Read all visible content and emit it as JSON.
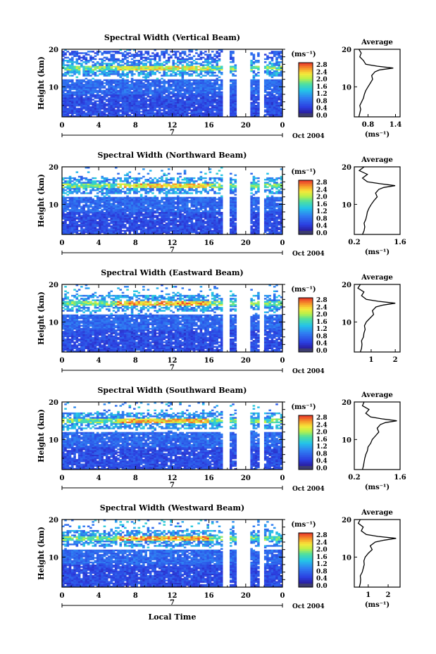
{
  "chart_data": [
    {
      "type": "heatmap",
      "title": "Spectral Width (Vertical Beam)",
      "ylabel": "Height (km)",
      "x_ticks": [
        "0",
        "4",
        "8",
        "12",
        "16",
        "20",
        "0"
      ],
      "y_ticks": [
        "20",
        "10"
      ],
      "date_label": "7",
      "date_suffix": "Oct 2004",
      "xlim": [
        0,
        24
      ],
      "ylim": [
        2,
        20
      ],
      "colorbar": {
        "unit_label": "(ms⁻¹)",
        "ticks": [
          "2.8",
          "2.4",
          "2.0",
          "1.6",
          "1.2",
          "0.8",
          "0.4",
          "0.0"
        ],
        "range": [
          0,
          2.8
        ]
      },
      "data_gaps_hours": [
        [
          17.6,
          18.2
        ],
        [
          19.1,
          20.5
        ],
        [
          21.6,
          22.0
        ]
      ],
      "bright_layer_km": 15,
      "average": {
        "title": "Average",
        "xlabel": "(ms⁻¹)",
        "x_ticks": [
          "0.8",
          "1.4"
        ],
        "xlim": [
          0.5,
          1.5
        ],
        "y_ticks": [
          "20",
          "10"
        ],
        "profile": [
          [
            2,
            0.6
          ],
          [
            3,
            0.62
          ],
          [
            4,
            0.64
          ],
          [
            5,
            0.62
          ],
          [
            6,
            0.66
          ],
          [
            7,
            0.7
          ],
          [
            8,
            0.72
          ],
          [
            9,
            0.75
          ],
          [
            10,
            0.8
          ],
          [
            11,
            0.85
          ],
          [
            12,
            0.9
          ],
          [
            13,
            0.88
          ],
          [
            14,
            0.95
          ],
          [
            14.5,
            1.05
          ],
          [
            15,
            1.35
          ],
          [
            15.5,
            1.0
          ],
          [
            16,
            0.75
          ],
          [
            17,
            0.7
          ],
          [
            18,
            0.62
          ],
          [
            19,
            0.65
          ],
          [
            20,
            0.6
          ]
        ]
      }
    },
    {
      "type": "heatmap",
      "title": "Spectral Width (Northward Beam)",
      "ylabel": "Height (km)",
      "x_ticks": [
        "0",
        "4",
        "8",
        "12",
        "16",
        "20",
        "0"
      ],
      "y_ticks": [
        "20",
        "10"
      ],
      "date_label": "7",
      "date_suffix": "Oct 2004",
      "xlim": [
        0,
        24
      ],
      "ylim": [
        2,
        20
      ],
      "colorbar": {
        "unit_label": "(ms⁻¹)",
        "ticks": [
          "2.8",
          "2.4",
          "2.0",
          "1.6",
          "1.2",
          "0.8",
          "0.4",
          "0.0"
        ],
        "range": [
          0,
          2.8
        ]
      },
      "data_gaps_hours": [
        [
          17.6,
          18.2
        ],
        [
          19.1,
          20.5
        ],
        [
          21.6,
          22.0
        ]
      ],
      "bright_layer_km": 15,
      "average": {
        "title": "Average",
        "xlabel": "(ms⁻¹)",
        "x_ticks": [
          "0.2",
          "1.6"
        ],
        "xlim": [
          0.2,
          1.6
        ],
        "y_ticks": [
          "20",
          "10"
        ],
        "profile": [
          [
            2,
            0.45
          ],
          [
            3,
            0.5
          ],
          [
            4,
            0.52
          ],
          [
            5,
            0.5
          ],
          [
            6,
            0.55
          ],
          [
            7,
            0.58
          ],
          [
            8,
            0.6
          ],
          [
            9,
            0.65
          ],
          [
            10,
            0.72
          ],
          [
            11,
            0.8
          ],
          [
            12,
            0.9
          ],
          [
            13,
            0.85
          ],
          [
            14,
            0.95
          ],
          [
            14.5,
            1.1
          ],
          [
            15,
            1.45
          ],
          [
            15.5,
            1.0
          ],
          [
            16,
            0.6
          ],
          [
            17,
            0.45
          ],
          [
            18,
            0.6
          ],
          [
            19,
            0.35
          ],
          [
            20,
            0.5
          ]
        ]
      }
    },
    {
      "type": "heatmap",
      "title": "Spectral Width (Eastward Beam)",
      "ylabel": "Height (km)",
      "x_ticks": [
        "0",
        "4",
        "8",
        "12",
        "16",
        "20",
        "0"
      ],
      "y_ticks": [
        "20",
        "10"
      ],
      "date_label": "7",
      "date_suffix": "Oct 2004",
      "xlim": [
        0,
        24
      ],
      "ylim": [
        2,
        20
      ],
      "colorbar": {
        "unit_label": "(ms⁻¹)",
        "ticks": [
          "2.8",
          "2.4",
          "2.0",
          "1.6",
          "1.2",
          "0.8",
          "0.4",
          "0.0"
        ],
        "range": [
          0,
          2.8
        ]
      },
      "data_gaps_hours": [
        [
          17.6,
          18.2
        ],
        [
          19.1,
          20.5
        ],
        [
          21.6,
          22.0
        ]
      ],
      "bright_layer_km": 15,
      "average": {
        "title": "Average",
        "xlabel": "",
        "x_ticks": [
          "1",
          "2"
        ],
        "xlim": [
          0.3,
          2.2
        ],
        "y_ticks": [
          "20",
          "10"
        ],
        "profile": [
          [
            2,
            0.55
          ],
          [
            3,
            0.6
          ],
          [
            4,
            0.62
          ],
          [
            5,
            0.6
          ],
          [
            6,
            0.68
          ],
          [
            7,
            0.7
          ],
          [
            8,
            0.75
          ],
          [
            9,
            0.72
          ],
          [
            10,
            0.8
          ],
          [
            11,
            0.95
          ],
          [
            12,
            1.1
          ],
          [
            13,
            1.05
          ],
          [
            14,
            1.2
          ],
          [
            14.5,
            1.5
          ],
          [
            15,
            2.0
          ],
          [
            15.5,
            1.3
          ],
          [
            16,
            0.8
          ],
          [
            17,
            0.6
          ],
          [
            18,
            0.7
          ],
          [
            19,
            0.45
          ],
          [
            20,
            0.55
          ]
        ]
      }
    },
    {
      "type": "heatmap",
      "title": "Spectral Width (Southward Beam)",
      "ylabel": "Height (km)",
      "x_ticks": [
        "0",
        "4",
        "8",
        "12",
        "16",
        "20",
        "0"
      ],
      "y_ticks": [
        "20",
        "10"
      ],
      "date_label": "7",
      "date_suffix": "Oct 2004",
      "xlim": [
        0,
        24
      ],
      "ylim": [
        2,
        20
      ],
      "colorbar": {
        "unit_label": "(ms⁻¹)",
        "ticks": [
          "2.8",
          "2.4",
          "2.0",
          "1.6",
          "1.2",
          "0.8",
          "0.4",
          "0.0"
        ],
        "range": [
          0,
          2.8
        ]
      },
      "data_gaps_hours": [
        [
          17.6,
          18.2
        ],
        [
          19.1,
          20.5
        ],
        [
          21.6,
          22.0
        ]
      ],
      "bright_layer_km": 15,
      "average": {
        "title": "Average",
        "xlabel": "(ms⁻¹)",
        "x_ticks": [
          "0.2",
          "1.6"
        ],
        "xlim": [
          0.2,
          1.6
        ],
        "y_ticks": [
          "20",
          "10"
        ],
        "profile": [
          [
            2,
            0.45
          ],
          [
            3,
            0.48
          ],
          [
            4,
            0.5
          ],
          [
            5,
            0.52
          ],
          [
            6,
            0.55
          ],
          [
            7,
            0.6
          ],
          [
            8,
            0.62
          ],
          [
            9,
            0.7
          ],
          [
            10,
            0.75
          ],
          [
            11,
            0.85
          ],
          [
            12,
            0.95
          ],
          [
            13,
            0.9
          ],
          [
            14,
            1.0
          ],
          [
            14.5,
            1.15
          ],
          [
            15,
            1.5
          ],
          [
            15.5,
            1.05
          ],
          [
            16,
            0.7
          ],
          [
            17,
            0.55
          ],
          [
            18,
            0.65
          ],
          [
            19,
            0.45
          ],
          [
            20,
            0.5
          ]
        ]
      }
    },
    {
      "type": "heatmap",
      "title": "Spectral Width (Westward Beam)",
      "ylabel": "Height (km)",
      "x_ticks": [
        "0",
        "4",
        "8",
        "12",
        "16",
        "20",
        "0"
      ],
      "y_ticks": [
        "20",
        "10"
      ],
      "date_label": "7",
      "date_suffix": "Oct 2004",
      "xlabel": "Local Time",
      "xlim": [
        0,
        24
      ],
      "ylim": [
        2,
        20
      ],
      "colorbar": {
        "unit_label": "(ms⁻¹)",
        "ticks": [
          "2.8",
          "2.4",
          "2.0",
          "1.6",
          "1.2",
          "0.8",
          "0.4",
          "0.0"
        ],
        "range": [
          0,
          2.8
        ]
      },
      "data_gaps_hours": [
        [
          17.6,
          18.2
        ],
        [
          19.1,
          20.5
        ],
        [
          21.6,
          22.0
        ]
      ],
      "bright_layer_km": 15,
      "average": {
        "title": "Average",
        "xlabel": "(ms⁻¹)",
        "x_ticks": [
          "1",
          "2"
        ],
        "xlim": [
          0.3,
          2.6
        ],
        "y_ticks": [
          "20",
          "10"
        ],
        "profile": [
          [
            2,
            0.55
          ],
          [
            3,
            0.6
          ],
          [
            4,
            0.62
          ],
          [
            5,
            0.6
          ],
          [
            6,
            0.7
          ],
          [
            7,
            0.75
          ],
          [
            8,
            0.8
          ],
          [
            9,
            0.78
          ],
          [
            10,
            0.85
          ],
          [
            11,
            1.0
          ],
          [
            12,
            1.2
          ],
          [
            13,
            1.1
          ],
          [
            14,
            1.35
          ],
          [
            14.5,
            1.8
          ],
          [
            15,
            2.4
          ],
          [
            15.5,
            1.5
          ],
          [
            16,
            0.9
          ],
          [
            17,
            0.65
          ],
          [
            18,
            0.75
          ],
          [
            19,
            0.5
          ],
          [
            20,
            0.6
          ]
        ]
      }
    }
  ]
}
